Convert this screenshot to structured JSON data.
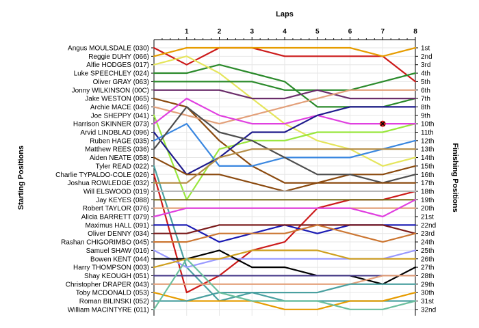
{
  "chart_data": {
    "type": "line",
    "title": "Laps",
    "ylabel_left": "Starting Positions",
    "ylabel_right": "Finishing Positions",
    "x": [
      0,
      1,
      2,
      3,
      4,
      5,
      6,
      7,
      8
    ],
    "x_tick_labels": [
      "1",
      "2",
      "3",
      "4",
      "5",
      "6",
      "7",
      "8"
    ],
    "y_reversed": true,
    "ylim": [
      1,
      32
    ],
    "starting_labels": [
      "Angus MOULSDALE (030)",
      "Reggie DUHY (066)",
      "Alfie HODGES (017)",
      "Luke SPEECHLEY (024)",
      "Oliver GRAY (063)",
      "Jonny WILKINSON (00C)",
      "Jake WESTON (065)",
      "Archie MACE (046)",
      "Joe SHEPPY (041)",
      "Harrison SKINNER (073)",
      "Arvid LINDBLAD (096)",
      "Ruben HAGE (035)",
      "Matthew REES (036)",
      "Aiden NEATE (058)",
      "Tyler READ (022)",
      "Charlie TYPALDO-COLE (026)",
      "Joshua ROWLEDGE (032)",
      "Will ELSWOOD (019)",
      "Jay KEYES (088)",
      "Robert TAYLOR (076)",
      "Alicia BARRETT (079)",
      "Maximus HALL (091)",
      "Oliver DENNY (034)",
      "Rashan CHIGORIMBO (045)",
      "Samuel SHAW (016)",
      "Bowen KENT (044)",
      "Harry THOMPSON (003)",
      "Shay KEOUGH (051)",
      "Christopher DRAPER (043)",
      "Toby MCDONALD (053)",
      "Roman BILINSKI (052)",
      "William MACINTYRE (011)"
    ],
    "finishing_labels": [
      "1st",
      "2nd",
      "3rd",
      "4th",
      "5th",
      "6th",
      "7th",
      "8th",
      "9th",
      "10th",
      "11th",
      "12th",
      "13th",
      "14th",
      "15th",
      "16th",
      "17th",
      "18th",
      "19th",
      "20th",
      "21st",
      "22nd",
      "23rd",
      "24th",
      "25th",
      "26th",
      "27th",
      "28th",
      "29th",
      "30th",
      "31st",
      "32nd"
    ],
    "series": [
      {
        "color": "#cc1a1a",
        "values": [
          1,
          3,
          1,
          1,
          2,
          2,
          2,
          2,
          5
        ]
      },
      {
        "color": "#e69c00",
        "values": [
          2,
          1,
          1,
          1,
          1,
          1,
          1,
          2,
          1
        ]
      },
      {
        "color": "#2b8a2b",
        "values": [
          4,
          4,
          3,
          4,
          5,
          8,
          8,
          8,
          7
        ]
      },
      {
        "color": "#e5e55c",
        "values": [
          3,
          2,
          4,
          7,
          10,
          12,
          13,
          15,
          14
        ]
      },
      {
        "color": "#2b8a2b",
        "values": [
          5,
          5,
          5,
          5,
          6,
          6,
          6,
          5,
          4
        ]
      },
      {
        "color": "#6a2d6a",
        "values": [
          6,
          6,
          6,
          7,
          7,
          6,
          7,
          7,
          7
        ]
      },
      {
        "color": "#8b4a0f",
        "values": [
          7,
          8,
          12,
          15,
          17,
          17,
          16,
          16,
          15
        ]
      },
      {
        "color": "#e3a07a",
        "values": [
          8,
          9,
          10,
          9,
          8,
          7,
          6,
          6,
          6
        ]
      },
      {
        "color": "#99e63d",
        "values": [
          9,
          19,
          13,
          12,
          12,
          11,
          11,
          11,
          10
        ]
      },
      {
        "color": "#e040e0",
        "values": [
          10,
          7,
          9,
          10,
          10,
          9,
          10,
          10,
          10
        ]
      },
      {
        "color": "#1e1a8c",
        "values": [
          11,
          16,
          14,
          11,
          11,
          9,
          8,
          8,
          8
        ]
      },
      {
        "color": "#3a87e0",
        "values": [
          12,
          10,
          15,
          15,
          14,
          14,
          14,
          13,
          12
        ]
      },
      {
        "color": "#4d4d4d",
        "values": [
          13,
          8,
          11,
          12,
          14,
          16,
          16,
          17,
          16
        ]
      },
      {
        "color": "#8b4a0f",
        "values": [
          14,
          16,
          16,
          17,
          18,
          17,
          17,
          17,
          17
        ]
      },
      {
        "color": "#4aa0a0",
        "values": [
          15,
          27,
          31,
          30,
          31,
          31,
          31,
          31,
          31
        ]
      },
      {
        "color": "#cc1a1a",
        "values": [
          16,
          30,
          28,
          25,
          24,
          20,
          19,
          19,
          18
        ]
      },
      {
        "color": "#b58d47",
        "values": [
          17,
          17,
          14,
          13,
          13,
          13,
          13,
          13,
          13
        ]
      },
      {
        "color": "#b7b7b7",
        "values": [
          18,
          18,
          18,
          18,
          18,
          18,
          18,
          18,
          18
        ]
      },
      {
        "color": "#7a6e1a",
        "values": [
          19,
          19,
          19,
          19,
          19,
          19,
          19,
          19,
          19
        ]
      },
      {
        "color": "#e3a07a",
        "values": [
          20,
          20,
          20,
          20,
          20,
          20,
          20,
          20,
          20
        ]
      },
      {
        "color": "#e040e0",
        "values": [
          21,
          20,
          20,
          20,
          20,
          20,
          20,
          21,
          19
        ]
      },
      {
        "color": "#1a1ab3",
        "values": [
          22,
          22,
          24,
          23,
          22,
          23,
          22,
          22,
          22
        ]
      },
      {
        "color": "#7a1a1a",
        "values": [
          23,
          23,
          22,
          22,
          22,
          22,
          22,
          22,
          23
        ]
      },
      {
        "color": "#cc7733",
        "values": [
          24,
          24,
          23,
          23,
          23,
          22,
          23,
          24,
          23
        ]
      },
      {
        "color": "#9999ff",
        "values": [
          25,
          27,
          26,
          26,
          26,
          26,
          26,
          26,
          25
        ]
      },
      {
        "color": "#000000",
        "values": [
          26,
          26,
          25,
          27,
          27,
          28,
          28,
          29,
          27
        ]
      },
      {
        "color": "#cfa020",
        "values": [
          27,
          26,
          26,
          25,
          25,
          25,
          26,
          26,
          26
        ]
      },
      {
        "color": "#4b3f8c",
        "values": [
          28,
          28,
          28,
          28,
          28,
          28,
          28,
          28,
          28
        ]
      },
      {
        "color": "#e3a07a",
        "values": [
          29,
          29,
          29,
          29,
          29,
          29,
          29,
          28,
          28
        ]
      },
      {
        "color": "#e69c00",
        "values": [
          30,
          31,
          31,
          31,
          32,
          32,
          31,
          31,
          30
        ]
      },
      {
        "color": "#4aa0a0",
        "values": [
          31,
          31,
          30,
          30,
          30,
          30,
          29,
          29,
          29
        ]
      },
      {
        "color": "#6bbf9e",
        "values": [
          32,
          26,
          30,
          31,
          31,
          31,
          32,
          32,
          31
        ]
      }
    ],
    "markers": [
      {
        "lap": 7,
        "position": 10,
        "symbol": "x",
        "color": "#d62020"
      }
    ]
  }
}
